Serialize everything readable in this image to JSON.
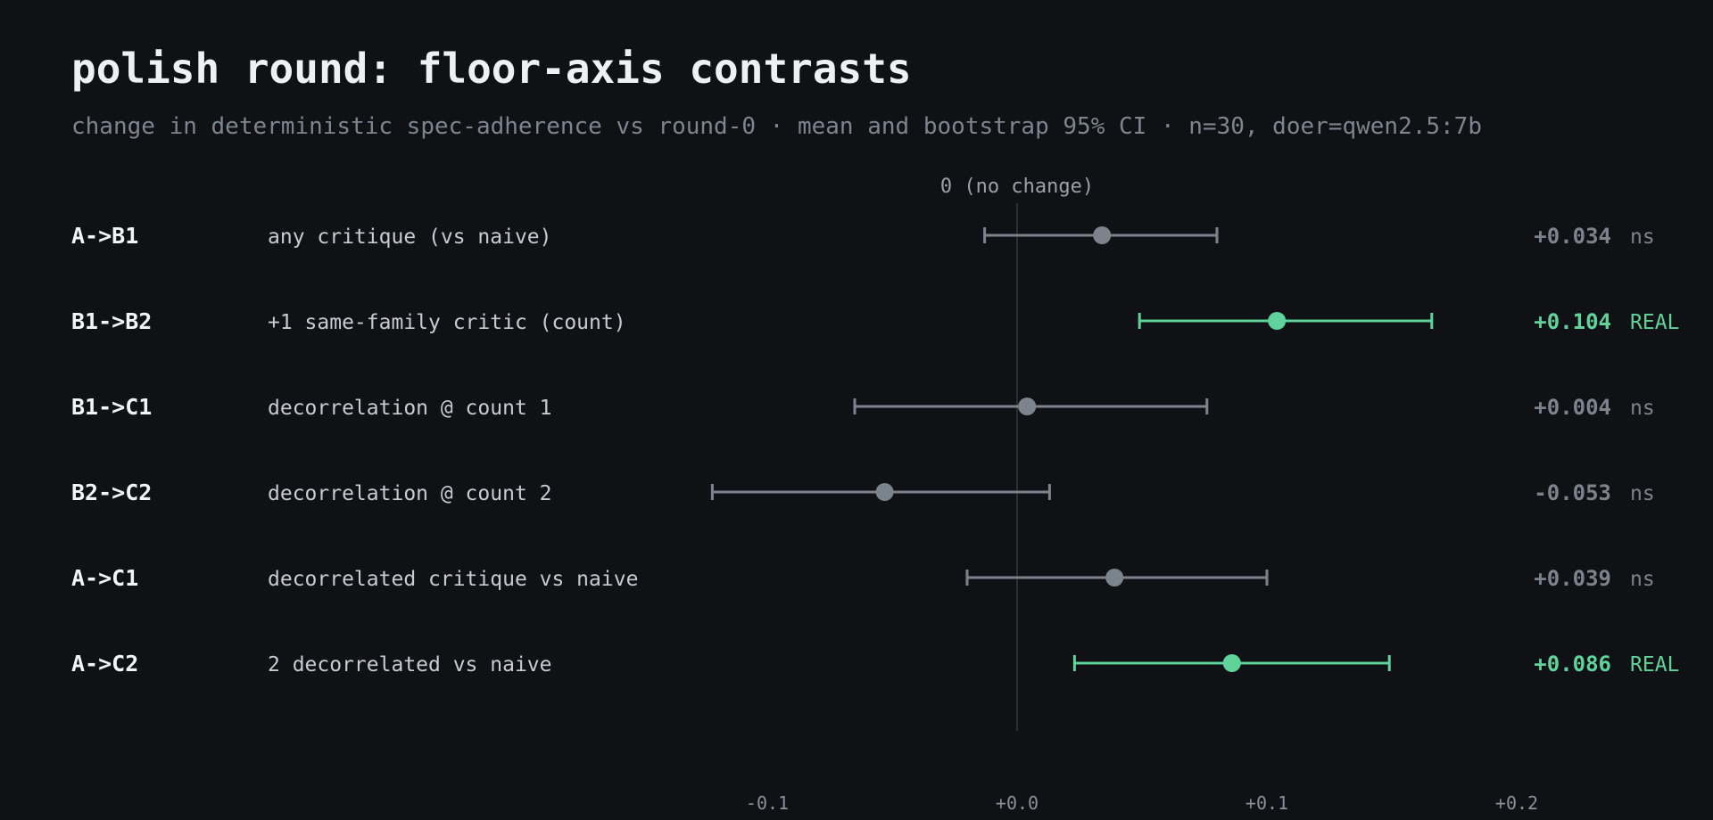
{
  "title": "polish round: floor-axis contrasts",
  "subtitle": "change in deterministic spec-adherence vs round-0 · mean and bootstrap 95% CI · n=30, doer=qwen2.5:7b",
  "zero_label": "0 (no change)",
  "colors": {
    "background": "#0f1115",
    "neutral": "#7d838d",
    "significant": "#5fd39a",
    "zero_line": "#2a2e35"
  },
  "chart_data": {
    "type": "forest",
    "xlim": [
      -0.13,
      0.2
    ],
    "ticks": [
      -0.1,
      0.0,
      0.1,
      0.2
    ],
    "tick_labels": [
      "-0.1",
      "+0.0",
      "+0.1",
      "+0.2"
    ],
    "rows": [
      {
        "id": "A->B1",
        "desc": "any critique (vs naive)",
        "mean": 0.034,
        "lo": -0.013,
        "hi": 0.08,
        "value_label": "+0.034",
        "tag": "ns",
        "significant": false
      },
      {
        "id": "B1->B2",
        "desc": "+1 same-family critic (count)",
        "mean": 0.104,
        "lo": 0.049,
        "hi": 0.166,
        "value_label": "+0.104",
        "tag": "REAL",
        "significant": true
      },
      {
        "id": "B1->C1",
        "desc": "decorrelation @ count 1",
        "mean": 0.004,
        "lo": -0.065,
        "hi": 0.076,
        "value_label": "+0.004",
        "tag": "ns",
        "significant": false
      },
      {
        "id": "B2->C2",
        "desc": "decorrelation @ count 2",
        "mean": -0.053,
        "lo": -0.122,
        "hi": 0.013,
        "value_label": "-0.053",
        "tag": "ns",
        "significant": false
      },
      {
        "id": "A->C1",
        "desc": "decorrelated critique vs naive",
        "mean": 0.039,
        "lo": -0.02,
        "hi": 0.1,
        "value_label": "+0.039",
        "tag": "ns",
        "significant": false
      },
      {
        "id": "A->C2",
        "desc": "2 decorrelated vs naive",
        "mean": 0.086,
        "lo": 0.023,
        "hi": 0.149,
        "value_label": "+0.086",
        "tag": "REAL",
        "significant": true
      }
    ]
  }
}
